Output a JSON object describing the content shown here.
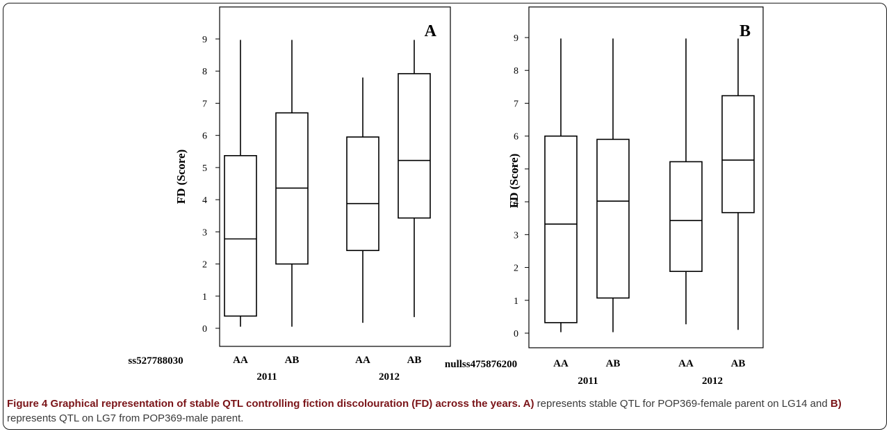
{
  "chart_data": [
    {
      "type": "boxplot",
      "panel_label": "A",
      "ylabel": "FD (Score)",
      "yticks": [
        0,
        1,
        2,
        3,
        4,
        5,
        6,
        7,
        8,
        9
      ],
      "ylim": [
        -0.6,
        9.4
      ],
      "marker_label": "ss527788030",
      "groups": [
        {
          "genotype": "AA",
          "year": "2011",
          "min": 0.05,
          "q1": 0.38,
          "median": 2.78,
          "q3": 5.37,
          "max": 8.97
        },
        {
          "genotype": "AB",
          "year": "2011",
          "min": 0.05,
          "q1": 2.0,
          "median": 4.36,
          "q3": 6.7,
          "max": 8.97
        },
        {
          "genotype": "AA",
          "year": "2012",
          "min": 0.17,
          "q1": 2.42,
          "median": 3.88,
          "q3": 5.95,
          "max": 7.8
        },
        {
          "genotype": "AB",
          "year": "2012",
          "min": 0.35,
          "q1": 3.43,
          "median": 5.22,
          "q3": 7.92,
          "max": 8.97
        }
      ],
      "year_labels": [
        "2011",
        "2012"
      ]
    },
    {
      "type": "boxplot",
      "panel_label": "B",
      "ylabel": "FD (Score)",
      "yticks": [
        0,
        1,
        2,
        3,
        4,
        5,
        6,
        7,
        8,
        9
      ],
      "ylim": [
        -0.4,
        9.4
      ],
      "marker_label": "nullss475876200",
      "groups": [
        {
          "genotype": "AA",
          "year": "2011",
          "min": 0.03,
          "q1": 0.32,
          "median": 3.32,
          "q3": 6.0,
          "max": 8.97
        },
        {
          "genotype": "AB",
          "year": "2011",
          "min": 0.03,
          "q1": 1.07,
          "median": 4.02,
          "q3": 5.9,
          "max": 8.97
        },
        {
          "genotype": "AA",
          "year": "2012",
          "min": 0.27,
          "q1": 1.88,
          "median": 3.43,
          "q3": 5.22,
          "max": 8.97
        },
        {
          "genotype": "AB",
          "year": "2012",
          "min": 0.1,
          "q1": 3.67,
          "median": 5.27,
          "q3": 7.23,
          "max": 8.97
        }
      ],
      "year_labels": [
        "2011",
        "2012"
      ]
    }
  ],
  "caption": {
    "figure_label": "Figure 4",
    "title": " Graphical representation of stable QTL controlling fiction discolouration (FD) across the years.",
    "a_label": " A)",
    "a_text": " represents stable QTL for POP369-female parent on LG14 and ",
    "b_label": "B)",
    "b_text": " represents QTL on LG7 from POP369-male parent."
  }
}
